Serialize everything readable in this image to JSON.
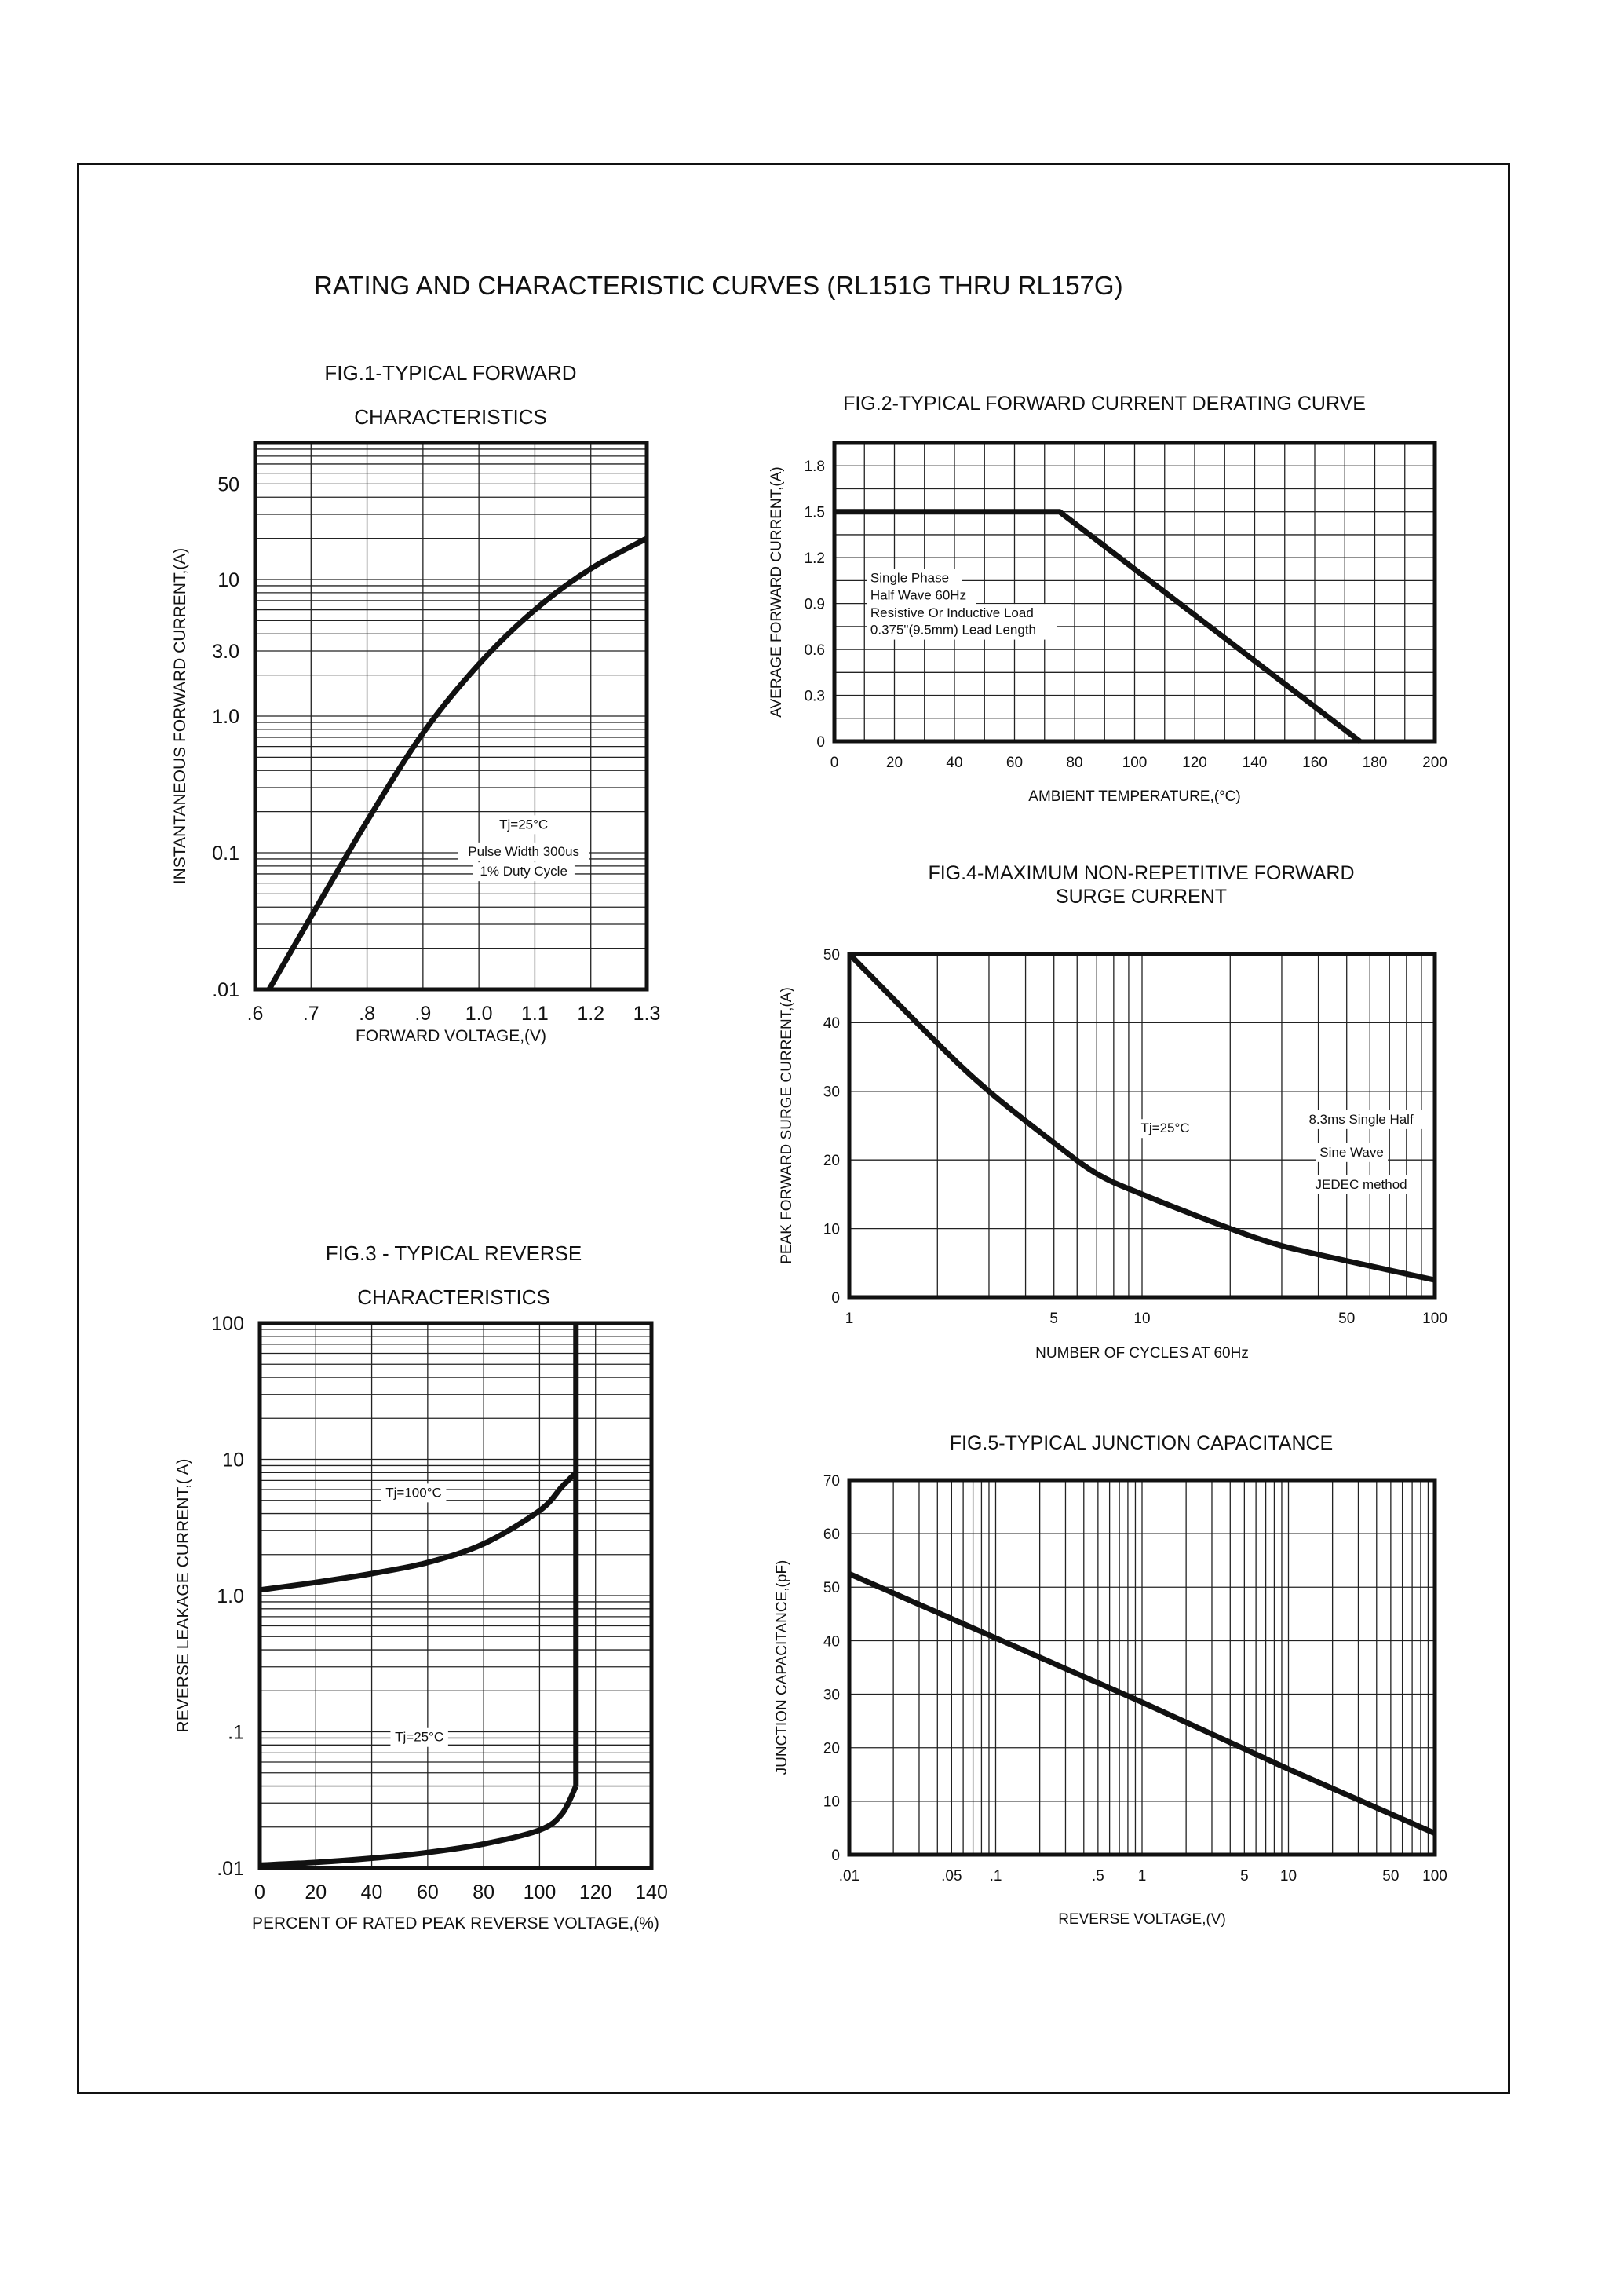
{
  "page_title": "RATING AND CHARACTERISTIC CURVES (RL151G THRU RL157G)",
  "colors": {
    "ink": "#111111",
    "grid": "#222222",
    "paper": "#ffffff"
  },
  "chart_data": [
    {
      "id": "fig1",
      "type": "line",
      "title": [
        "FIG.1-TYPICAL FORWARD",
        "CHARACTERISTICS"
      ],
      "xlabel": "FORWARD VOLTAGE,(V)",
      "ylabel": "INSTANTANEOUS FORWARD CURRENT,(A)",
      "xscale": "linear",
      "yscale": "log",
      "xlim": [
        0.6,
        1.3
      ],
      "ylim": [
        0.01,
        100
      ],
      "grid": true,
      "xticks": [
        {
          "v": 0.6,
          "label": ".6"
        },
        {
          "v": 0.7,
          "label": ".7"
        },
        {
          "v": 0.8,
          "label": ".8"
        },
        {
          "v": 0.9,
          "label": ".9"
        },
        {
          "v": 1.0,
          "label": "1.0"
        },
        {
          "v": 1.1,
          "label": "1.1"
        },
        {
          "v": 1.2,
          "label": "1.2"
        },
        {
          "v": 1.3,
          "label": "1.3"
        }
      ],
      "yticks": [
        {
          "v": 0.01,
          "label": ".01"
        },
        {
          "v": 0.1,
          "label": "0.1"
        },
        {
          "v": 1,
          "label": "1.0"
        },
        {
          "v": 3,
          "label": "3.0"
        },
        {
          "v": 10,
          "label": "10"
        },
        {
          "v": 50,
          "label": "50"
        }
      ],
      "annotations": [
        "Tj=25°C",
        "Pulse Width 300us",
        "1% Duty Cycle"
      ],
      "series": [
        {
          "points": [
            [
              0.625,
              0.01
            ],
            [
              0.7,
              0.034
            ],
            [
              0.8,
              0.17
            ],
            [
              0.9,
              0.75
            ],
            [
              1.0,
              2.4
            ],
            [
              1.1,
              6.0
            ],
            [
              1.2,
              12
            ],
            [
              1.3,
              20
            ]
          ]
        }
      ]
    },
    {
      "id": "fig2",
      "type": "line",
      "title": [
        "FIG.2-TYPICAL FORWARD CURRENT DERATING CURVE"
      ],
      "xlabel": "AMBIENT TEMPERATURE,(°C)",
      "ylabel": "AVERAGE FORWARD CURRENT,(A)",
      "xscale": "linear",
      "yscale": "linear",
      "xlim": [
        0,
        200
      ],
      "ylim": [
        0,
        1.95
      ],
      "grid": true,
      "xticks": [
        {
          "v": 0,
          "label": "0"
        },
        {
          "v": 20,
          "label": "20"
        },
        {
          "v": 40,
          "label": "40"
        },
        {
          "v": 60,
          "label": "60"
        },
        {
          "v": 80,
          "label": "80"
        },
        {
          "v": 100,
          "label": "100"
        },
        {
          "v": 120,
          "label": "120"
        },
        {
          "v": 140,
          "label": "140"
        },
        {
          "v": 160,
          "label": "160"
        },
        {
          "v": 180,
          "label": "180"
        },
        {
          "v": 200,
          "label": "200"
        }
      ],
      "yticks": [
        {
          "v": 0,
          "label": "0"
        },
        {
          "v": 0.3,
          "label": "0.3"
        },
        {
          "v": 0.6,
          "label": "0.6"
        },
        {
          "v": 0.9,
          "label": "0.9"
        },
        {
          "v": 1.2,
          "label": "1.2"
        },
        {
          "v": 1.5,
          "label": "1.5"
        },
        {
          "v": 1.8,
          "label": "1.8"
        }
      ],
      "annotations": [
        "Single Phase",
        "Half Wave 60Hz",
        "Resistive Or Inductive Load",
        "0.375\"(9.5mm) Lead Length"
      ],
      "series": [
        {
          "points": [
            [
              0,
              1.5
            ],
            [
              75,
              1.5
            ],
            [
              175,
              0
            ]
          ],
          "straight": true
        }
      ]
    },
    {
      "id": "fig3",
      "type": "line",
      "title": [
        "FIG.3 - TYPICAL REVERSE",
        "CHARACTERISTICS"
      ],
      "xlabel": "PERCENT OF RATED PEAK REVERSE VOLTAGE,(%)",
      "ylabel": "REVERSE LEAKAGE CURRENT,( A)",
      "xscale": "linear",
      "yscale": "log",
      "xlim": [
        0,
        140
      ],
      "ylim": [
        0.01,
        100
      ],
      "grid": true,
      "xticks": [
        {
          "v": 0,
          "label": "0"
        },
        {
          "v": 20,
          "label": "20"
        },
        {
          "v": 40,
          "label": "40"
        },
        {
          "v": 60,
          "label": "60"
        },
        {
          "v": 80,
          "label": "80"
        },
        {
          "v": 100,
          "label": "100"
        },
        {
          "v": 120,
          "label": "120"
        },
        {
          "v": 140,
          "label": "140"
        }
      ],
      "yticks": [
        {
          "v": 0.01,
          "label": ".01"
        },
        {
          "v": 0.1,
          "label": ".1"
        },
        {
          "v": 1,
          "label": "1.0"
        },
        {
          "v": 10,
          "label": "10"
        },
        {
          "v": 100,
          "label": "100"
        }
      ],
      "annotations": [
        "Tj=100°C",
        "Tj=25°C"
      ],
      "series": [
        {
          "name": "Tj=100°C",
          "points": [
            [
              0,
              1.1
            ],
            [
              20,
              1.25
            ],
            [
              40,
              1.45
            ],
            [
              60,
              1.75
            ],
            [
              80,
              2.4
            ],
            [
              100,
              4.2
            ],
            [
              108,
              6.3
            ],
            [
              113,
              8
            ]
          ]
        },
        {
          "name": "Tj=25°C",
          "points": [
            [
              0,
              0.0105
            ],
            [
              20,
              0.011
            ],
            [
              40,
              0.0118
            ],
            [
              60,
              0.013
            ],
            [
              80,
              0.015
            ],
            [
              100,
              0.019
            ],
            [
              108,
              0.025
            ],
            [
              113,
              0.04
            ]
          ]
        },
        {
          "points": [
            [
              113,
              0.04
            ],
            [
              113,
              100
            ]
          ],
          "straight": true
        }
      ]
    },
    {
      "id": "fig4",
      "type": "line",
      "title": [
        "FIG.4-MAXIMUM NON-REPETITIVE FORWARD",
        "SURGE CURRENT"
      ],
      "xlabel": "NUMBER OF CYCLES AT 60Hz",
      "ylabel": "PEAK FORWARD SURGE CURRENT,(A)",
      "xscale": "log",
      "yscale": "linear",
      "xlim": [
        1,
        100
      ],
      "ylim": [
        0,
        50
      ],
      "grid": true,
      "xticks": [
        {
          "v": 1,
          "label": "1"
        },
        {
          "v": 5,
          "label": "5"
        },
        {
          "v": 10,
          "label": "10"
        },
        {
          "v": 50,
          "label": "50"
        },
        {
          "v": 100,
          "label": "100"
        }
      ],
      "yticks": [
        {
          "v": 0,
          "label": "0"
        },
        {
          "v": 10,
          "label": "10"
        },
        {
          "v": 20,
          "label": "20"
        },
        {
          "v": 30,
          "label": "30"
        },
        {
          "v": 40,
          "label": "40"
        },
        {
          "v": 50,
          "label": "50"
        }
      ],
      "annotations": [
        "Tj=25°C",
        "8.3ms Single Half",
        "Sine Wave",
        "JEDEC method"
      ],
      "series": [
        {
          "points": [
            [
              1,
              50
            ],
            [
              2,
              37
            ],
            [
              3,
              30
            ],
            [
              5,
              22.5
            ],
            [
              7,
              18
            ],
            [
              10,
              15
            ],
            [
              20,
              10
            ],
            [
              30,
              7.5
            ],
            [
              50,
              5.3
            ],
            [
              100,
              2.5
            ]
          ]
        }
      ]
    },
    {
      "id": "fig5",
      "type": "line",
      "title": [
        "FIG.5-TYPICAL JUNCTION CAPACITANCE"
      ],
      "xlabel": "REVERSE VOLTAGE,(V)",
      "ylabel": "JUNCTION CAPACITANCE,(pF)",
      "xscale": "log",
      "yscale": "linear",
      "xlim": [
        0.01,
        100
      ],
      "ylim": [
        0,
        70
      ],
      "grid": true,
      "xticks": [
        {
          "v": 0.01,
          "label": ".01"
        },
        {
          "v": 0.05,
          "label": ".05"
        },
        {
          "v": 0.1,
          "label": ".1"
        },
        {
          "v": 0.5,
          "label": ".5"
        },
        {
          "v": 1,
          "label": "1"
        },
        {
          "v": 5,
          "label": "5"
        },
        {
          "v": 10,
          "label": "10"
        },
        {
          "v": 50,
          "label": "50"
        },
        {
          "v": 100,
          "label": "100"
        }
      ],
      "yticks": [
        {
          "v": 0,
          "label": "0"
        },
        {
          "v": 10,
          "label": "10"
        },
        {
          "v": 20,
          "label": "20"
        },
        {
          "v": 30,
          "label": "30"
        },
        {
          "v": 40,
          "label": "40"
        },
        {
          "v": 50,
          "label": "50"
        },
        {
          "v": 60,
          "label": "60"
        },
        {
          "v": 70,
          "label": "70"
        }
      ],
      "annotations": [],
      "series": [
        {
          "points": [
            [
              0.01,
              52.5
            ],
            [
              0.1,
              40.5
            ],
            [
              1,
              28.5
            ],
            [
              10,
              16
            ],
            [
              100,
              4
            ]
          ],
          "straight": true
        }
      ]
    }
  ]
}
